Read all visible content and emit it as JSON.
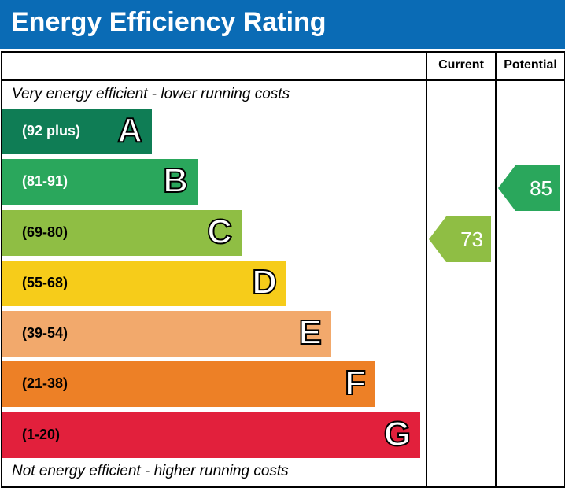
{
  "title": "Energy Efficiency Rating",
  "chart_data": {
    "type": "bar",
    "title": "Energy Efficiency Rating",
    "columns": [
      "Current",
      "Potential"
    ],
    "top_note": "Very energy efficient - lower running costs",
    "bottom_note": "Not energy efficient - higher running costs",
    "bands": [
      {
        "letter": "A",
        "range": "(92 plus)",
        "color": "#0f7d55",
        "text_color": "#ffffff"
      },
      {
        "letter": "B",
        "range": "(81-91)",
        "color": "#2aa75c",
        "text_color": "#ffffff"
      },
      {
        "letter": "C",
        "range": "(69-80)",
        "color": "#8fbe44",
        "text_color": "#000000"
      },
      {
        "letter": "D",
        "range": "(55-68)",
        "color": "#f6cc1a",
        "text_color": "#000000"
      },
      {
        "letter": "E",
        "range": "(39-54)",
        "color": "#f2a96c",
        "text_color": "#000000"
      },
      {
        "letter": "F",
        "range": "(21-38)",
        "color": "#ed8026",
        "text_color": "#000000"
      },
      {
        "letter": "G",
        "range": "(1-20)",
        "color": "#e2203c",
        "text_color": "#000000"
      }
    ],
    "current": {
      "value": "73",
      "band": "C",
      "color": "#8fbe44"
    },
    "potential": {
      "value": "85",
      "band": "B",
      "color": "#2aa75c"
    }
  }
}
